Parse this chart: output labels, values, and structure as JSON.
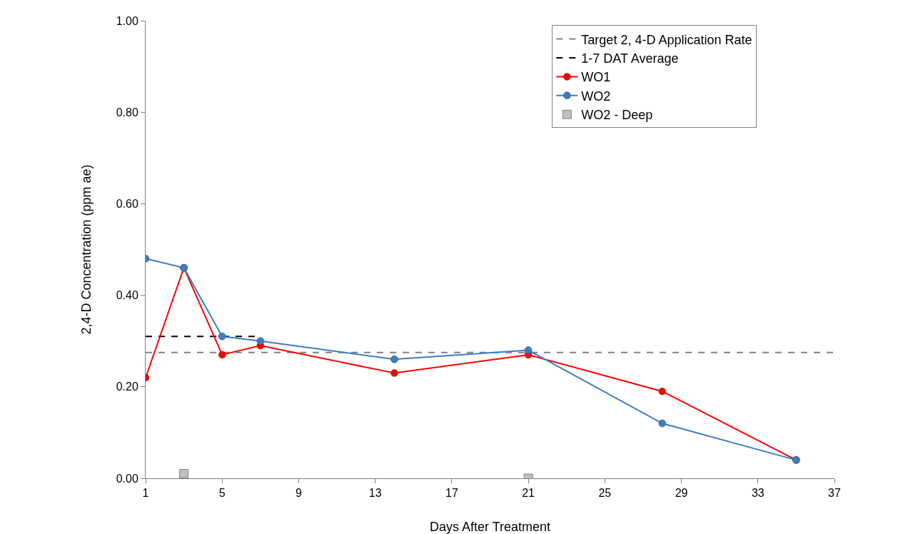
{
  "chart_data": {
    "type": "line",
    "xlabel": "Days After Treatment",
    "ylabel": "2,4-D Concentration (ppm ae)",
    "xlim": [
      1,
      37
    ],
    "xticks": [
      1,
      5,
      9,
      13,
      17,
      21,
      25,
      29,
      33,
      37
    ],
    "ylim": [
      0,
      1
    ],
    "yticks": [
      {
        "value": 0,
        "label": "0.00"
      },
      {
        "value": 0.2,
        "label": "0.20"
      },
      {
        "value": 0.4,
        "label": "0.40"
      },
      {
        "value": 0.6,
        "label": "0.60"
      },
      {
        "value": 0.8,
        "label": "0.80"
      },
      {
        "value": 1,
        "label": "1.00"
      }
    ],
    "grid": false,
    "legend": "top right",
    "series": [
      {
        "name": "Target 2, 4-D Application Rate",
        "color": "#808080",
        "line_style": "dashed",
        "marker": "none",
        "x": [
          1,
          37
        ],
        "values": [
          0.275,
          0.275
        ]
      },
      {
        "name": "1-7 DAT Average",
        "color": "#000000",
        "line_style": "dashed",
        "marker": "none",
        "x": [
          1,
          7
        ],
        "values": [
          0.31,
          0.31
        ]
      },
      {
        "name": "WO1",
        "color": "#ff0000",
        "line_style": "solid",
        "marker": "circle",
        "x": [
          1,
          3,
          5,
          7,
          14,
          21,
          28,
          35
        ],
        "values": [
          0.22,
          0.46,
          0.27,
          0.29,
          0.23,
          0.27,
          0.19,
          0.04
        ]
      },
      {
        "name": "WO2",
        "color": "#3c7dc4",
        "line_style": "solid",
        "marker": "circle",
        "x": [
          1,
          3,
          5,
          7,
          14,
          21,
          28,
          35
        ],
        "values": [
          0.48,
          0.46,
          0.31,
          0.3,
          0.26,
          0.28,
          0.12,
          0.04
        ]
      },
      {
        "name": "WO2 - Deep",
        "type": "scatter",
        "color": "#bfbfbf",
        "marker": "square",
        "x": [
          3,
          21
        ],
        "values": [
          0.01,
          0.0
        ]
      }
    ]
  }
}
